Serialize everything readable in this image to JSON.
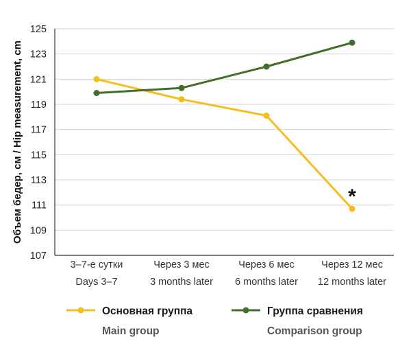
{
  "chart_data": {
    "type": "line",
    "title": "",
    "xlabel": "",
    "ylabel": "Объем бедер, см / Hip measurement, cm",
    "ylim": [
      107,
      125
    ],
    "yticks": [
      107,
      109,
      111,
      113,
      115,
      117,
      119,
      121,
      123,
      125
    ],
    "grid": true,
    "legend_position": "bottom",
    "categories": [
      {
        "ru": "3–7-е сутки",
        "en": "Days 3–7"
      },
      {
        "ru": "Через 3 мес",
        "en": "3 months later"
      },
      {
        "ru": "Через 6 мес",
        "en": "6 months later"
      },
      {
        "ru": "Через 12 мес",
        "en": "12 months later"
      }
    ],
    "series": [
      {
        "name": "Основная группа",
        "name_en": "Main group",
        "color": "#f5be1e",
        "values": [
          121.0,
          119.4,
          118.1,
          110.7
        ]
      },
      {
        "name": "Группа сравнения",
        "name_en": "Comparison group",
        "color": "#3f6f2a",
        "values": [
          119.9,
          120.3,
          122.0,
          123.9
        ]
      }
    ],
    "annotations": [
      {
        "text": "*",
        "category_index": 3,
        "series_index": 0
      }
    ]
  }
}
